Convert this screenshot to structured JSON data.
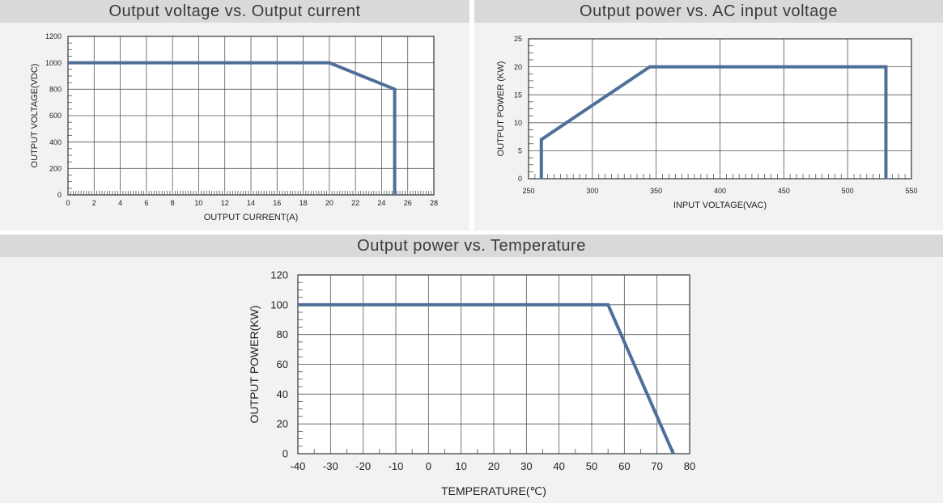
{
  "colors": {
    "line": "#4f6f98",
    "grid": "#555555",
    "title_bar": "#d9d9d9",
    "panel_bg": "#f2f2f2"
  },
  "chart_data": [
    {
      "type": "line",
      "title": "Output voltage vs. Output current",
      "xlabel": "OUTPUT CURRENT(A)",
      "ylabel": "OUTPUT VOLTAGE(VDC)",
      "xlim": [
        0,
        28
      ],
      "ylim": [
        0,
        1200
      ],
      "xticks": [
        0,
        2,
        4,
        6,
        8,
        10,
        12,
        14,
        16,
        18,
        20,
        22,
        24,
        26,
        28
      ],
      "yticks": [
        0,
        200,
        400,
        600,
        800,
        1000,
        1200
      ],
      "grid": true,
      "series": [
        {
          "x": [
            0,
            20,
            25,
            25
          ],
          "y": [
            1000,
            1000,
            800,
            0
          ]
        }
      ]
    },
    {
      "type": "line",
      "title": "Output power vs. AC input voltage",
      "xlabel": "INPUT VOLTAGE(VAC)",
      "ylabel": "OUTPUT POWER (KW)",
      "xlim": [
        250,
        550
      ],
      "ylim": [
        0,
        25
      ],
      "xticks": [
        250,
        300,
        350,
        400,
        450,
        500,
        550
      ],
      "yticks": [
        0,
        5,
        10,
        15,
        20,
        25
      ],
      "grid": true,
      "series": [
        {
          "x": [
            260,
            260,
            345,
            530,
            530
          ],
          "y": [
            0,
            7,
            20,
            20,
            0
          ]
        }
      ]
    },
    {
      "type": "line",
      "title": "Output power vs. Temperature",
      "xlabel": "TEMPERATURE(℃)",
      "ylabel": "OUTPUT POWER(KW)",
      "xlim": [
        -40,
        80
      ],
      "ylim": [
        0,
        120
      ],
      "xticks": [
        -40,
        -30,
        -20,
        -10,
        0,
        10,
        20,
        30,
        40,
        50,
        60,
        70,
        80
      ],
      "yticks": [
        0,
        20,
        40,
        60,
        80,
        100,
        120
      ],
      "grid": true,
      "series": [
        {
          "x": [
            -40,
            55,
            75
          ],
          "y": [
            100,
            100,
            0
          ]
        }
      ]
    }
  ]
}
